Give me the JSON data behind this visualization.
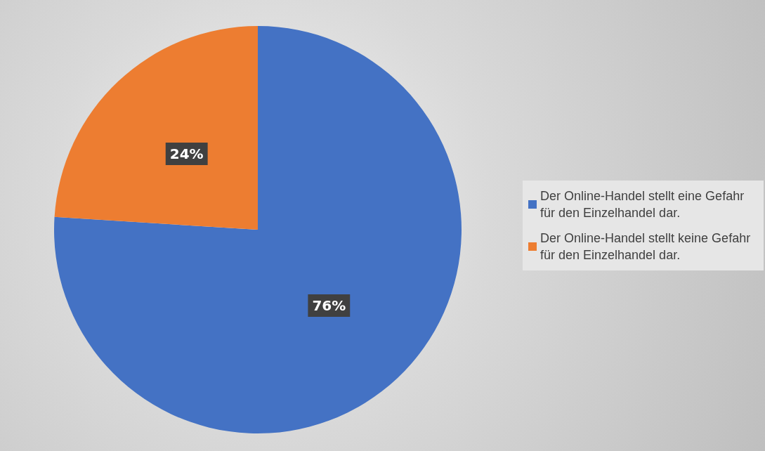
{
  "chart_data": {
    "type": "pie",
    "categories": [
      "Der Online-Handel stellt eine Gefahr für den Einzelhandel dar.",
      "Der Online-Handel stellt keine Gefahr für den Einzelhandel dar."
    ],
    "values": [
      76,
      24
    ],
    "colors": [
      "#4472c4",
      "#ed7d31"
    ],
    "value_labels": [
      "76%",
      "24%"
    ],
    "legend": "right"
  }
}
